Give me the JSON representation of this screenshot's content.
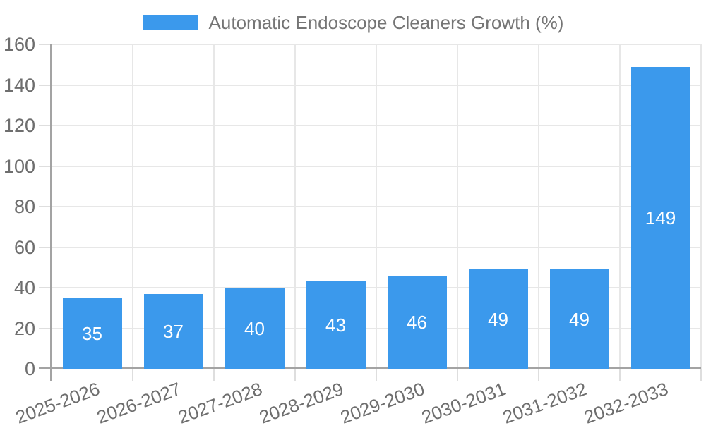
{
  "chart_data": {
    "type": "bar",
    "title": "Automatic Endoscope Cleaners Growth (%)",
    "categories": [
      "2025-2026",
      "2026-2027",
      "2027-2028",
      "2028-2029",
      "2029-2030",
      "2030-2031",
      "2031-2032",
      "2032-2033"
    ],
    "values": [
      35,
      37,
      40,
      43,
      46,
      49,
      49,
      149
    ],
    "xlabel": "",
    "ylabel": "",
    "ylim": [
      0,
      160
    ],
    "yticks": [
      0,
      20,
      40,
      60,
      80,
      100,
      120,
      140,
      160
    ],
    "grid": true,
    "legend_position": "top",
    "value_labels": "centered-white-inside-bars"
  },
  "colors": {
    "bar": "#3b99ec",
    "legend_text": "#757575",
    "axis_text": "#6e6e6e",
    "grid": "#e7e7e7",
    "tick": "#dedede",
    "axis_line": "#a3a3a3",
    "value_label": "#ffffff",
    "background": "#ffffff"
  }
}
